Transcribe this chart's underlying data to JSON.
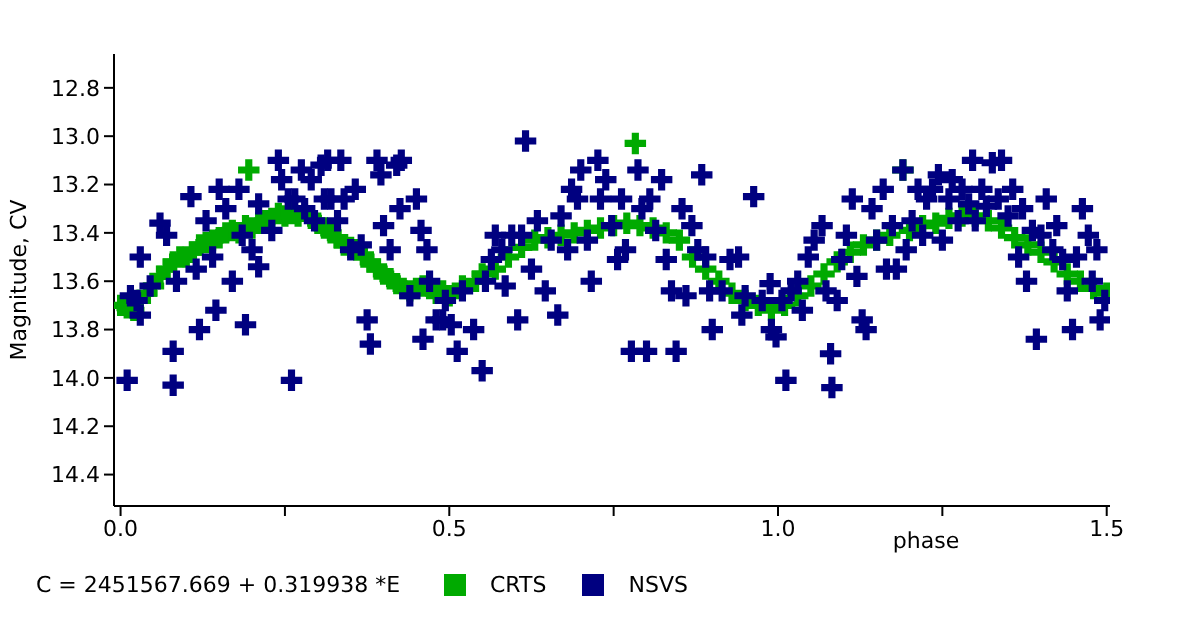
{
  "chart_data": {
    "type": "scatter",
    "xlabel": "phase",
    "ylabel": "Magnitude, CV",
    "annotations": [
      "C = 2451567.669 + 0.319938 *E"
    ],
    "xlim": [
      -0.01,
      1.505
    ],
    "ylim": [
      14.53,
      12.66
    ],
    "xticks": [
      {
        "value": 0,
        "label": "0.0"
      },
      {
        "value": 0.25,
        "label": null
      },
      {
        "value": 0.5,
        "label": "0.5"
      },
      {
        "value": 0.75,
        "label": null
      },
      {
        "value": 1,
        "label": "1.0"
      },
      {
        "value": 1.25,
        "label": null
      },
      {
        "value": 1.5,
        "label": "1.5"
      }
    ],
    "yticks": [
      12.8,
      {
        "value": 13.0,
        "label": "13.0"
      },
      13.2,
      13.4,
      13.6,
      13.8,
      {
        "value": 14.0,
        "label": "14.0"
      },
      14.2,
      14.4
    ],
    "grid": false,
    "legend": "bottom left",
    "marker": "cross",
    "series": [
      {
        "name": "CRTS",
        "color": "#00aa00",
        "x": [
          0.0,
          0.01,
          0.02,
          0.03,
          0.04,
          0.05,
          0.06,
          0.07,
          0.08,
          0.09,
          0.1,
          0.11,
          0.12,
          0.13,
          0.14,
          0.15,
          0.16,
          0.17,
          0.18,
          0.195,
          0.19,
          0.2,
          0.21,
          0.22,
          0.23,
          0.24,
          0.25,
          0.26,
          0.27,
          0.29,
          0.3,
          0.31,
          0.32,
          0.33,
          0.34,
          0.35,
          0.36,
          0.37,
          0.38,
          0.39,
          0.4,
          0.41,
          0.42,
          0.43,
          0.44,
          0.45,
          0.46,
          0.47,
          0.48,
          0.49,
          0.5,
          0.52,
          0.54,
          0.55,
          0.57,
          0.59,
          0.61,
          0.63,
          0.65,
          0.67,
          0.69,
          0.71,
          0.73,
          0.75,
          0.77,
          0.783,
          0.79,
          0.81,
          0.83,
          0.85,
          0.87,
          0.89,
          0.91,
          0.93,
          0.95,
          0.97,
          0.99,
          1.01,
          1.03,
          1.05,
          1.07,
          1.09,
          1.11,
          1.13,
          1.15,
          1.17,
          1.19,
          1.2,
          1.22,
          1.24,
          1.26,
          1.28,
          1.3,
          1.32,
          1.34,
          1.36,
          1.38,
          1.4,
          1.42,
          1.44,
          1.46,
          1.48,
          1.5
        ],
        "values": [
          13.7,
          13.71,
          13.72,
          13.68,
          13.65,
          13.62,
          13.58,
          13.55,
          13.52,
          13.5,
          13.5,
          13.48,
          13.45,
          13.44,
          13.43,
          13.42,
          13.4,
          13.39,
          13.4,
          13.14,
          13.37,
          13.38,
          13.36,
          13.35,
          13.34,
          13.32,
          13.33,
          13.32,
          13.33,
          13.34,
          13.36,
          13.38,
          13.4,
          13.42,
          13.45,
          13.46,
          13.47,
          13.5,
          13.52,
          13.55,
          13.57,
          13.59,
          13.61,
          13.63,
          13.64,
          13.63,
          13.62,
          13.63,
          13.65,
          13.64,
          13.66,
          13.62,
          13.6,
          13.57,
          13.55,
          13.5,
          13.46,
          13.43,
          13.42,
          13.41,
          13.4,
          13.39,
          13.38,
          13.37,
          13.36,
          13.03,
          13.37,
          13.38,
          13.4,
          13.43,
          13.5,
          13.55,
          13.6,
          13.65,
          13.68,
          13.7,
          13.72,
          13.7,
          13.66,
          13.62,
          13.57,
          13.52,
          13.48,
          13.45,
          13.43,
          13.41,
          13.14,
          13.39,
          13.37,
          13.36,
          13.34,
          13.33,
          13.33,
          13.35,
          13.38,
          13.42,
          13.45,
          13.48,
          13.52,
          13.57,
          13.6,
          13.63,
          13.65
        ]
      },
      {
        "name": "NSVS",
        "color": "#000080",
        "x": [
          0.01,
          0.015,
          0.025,
          0.03,
          0.03,
          0.045,
          0.06,
          0.07,
          0.08,
          0.08,
          0.085,
          0.107,
          0.115,
          0.12,
          0.13,
          0.14,
          0.145,
          0.15,
          0.16,
          0.17,
          0.18,
          0.185,
          0.19,
          0.2,
          0.21,
          0.21,
          0.23,
          0.24,
          0.245,
          0.255,
          0.26,
          0.265,
          0.275,
          0.28,
          0.29,
          0.295,
          0.305,
          0.31,
          0.315,
          0.32,
          0.33,
          0.335,
          0.34,
          0.35,
          0.357,
          0.366,
          0.375,
          0.38,
          0.39,
          0.396,
          0.4,
          0.41,
          0.42,
          0.425,
          0.427,
          0.44,
          0.45,
          0.457,
          0.46,
          0.466,
          0.47,
          0.48,
          0.49,
          0.494,
          0.503,
          0.512,
          0.52,
          0.537,
          0.55,
          0.555,
          0.564,
          0.57,
          0.58,
          0.585,
          0.595,
          0.604,
          0.61,
          0.616,
          0.625,
          0.634,
          0.646,
          0.655,
          0.665,
          0.67,
          0.68,
          0.686,
          0.695,
          0.7,
          0.71,
          0.716,
          0.726,
          0.73,
          0.738,
          0.747,
          0.756,
          0.762,
          0.768,
          0.777,
          0.787,
          0.793,
          0.8,
          0.805,
          0.814,
          0.823,
          0.83,
          0.838,
          0.845,
          0.854,
          0.86,
          0.869,
          0.878,
          0.884,
          0.89,
          0.896,
          0.9,
          0.915,
          0.927,
          0.94,
          0.945,
          0.95,
          0.963,
          0.976,
          0.988,
          0.99,
          0.997,
          1.006,
          1.012,
          1.02,
          1.03,
          1.037,
          1.046,
          1.055,
          1.067,
          1.073,
          1.08,
          1.082,
          1.09,
          1.097,
          1.104,
          1.113,
          1.12,
          1.128,
          1.134,
          1.143,
          1.15,
          1.16,
          1.165,
          1.174,
          1.18,
          1.19,
          1.195,
          1.204,
          1.213,
          1.22,
          1.226,
          1.235,
          1.244,
          1.25,
          1.26,
          1.265,
          1.274,
          1.28,
          1.29,
          1.296,
          1.3,
          1.31,
          1.317,
          1.326,
          1.335,
          1.34,
          1.35,
          1.357,
          1.366,
          1.372,
          1.378,
          1.387,
          1.393,
          1.4,
          1.408,
          1.418,
          1.424,
          1.433,
          1.44,
          1.448,
          1.454,
          1.463,
          1.472,
          1.478,
          1.485,
          1.49,
          1.497
        ],
        "values": [
          14.01,
          13.66,
          13.68,
          13.5,
          13.74,
          13.62,
          13.36,
          13.41,
          14.03,
          13.89,
          13.6,
          13.25,
          13.55,
          13.8,
          13.35,
          13.5,
          13.72,
          13.22,
          13.3,
          13.6,
          13.22,
          13.41,
          13.78,
          13.47,
          13.28,
          13.54,
          13.39,
          13.1,
          13.18,
          13.26,
          14.01,
          13.26,
          13.14,
          13.3,
          13.18,
          13.35,
          13.12,
          13.26,
          13.1,
          13.26,
          13.35,
          13.1,
          13.26,
          13.47,
          13.22,
          13.45,
          13.76,
          13.86,
          13.1,
          13.16,
          13.37,
          13.47,
          13.12,
          13.3,
          13.1,
          13.66,
          13.26,
          13.39,
          13.84,
          13.47,
          13.6,
          13.76,
          13.76,
          13.68,
          13.78,
          13.89,
          13.64,
          13.8,
          13.97,
          13.6,
          13.51,
          13.41,
          13.47,
          13.62,
          13.41,
          13.76,
          13.41,
          13.02,
          13.55,
          13.35,
          13.64,
          13.43,
          13.74,
          13.33,
          13.47,
          13.22,
          13.26,
          13.14,
          13.43,
          13.6,
          13.1,
          13.26,
          13.18,
          13.37,
          13.51,
          13.26,
          13.47,
          13.89,
          13.14,
          13.3,
          13.89,
          13.26,
          13.39,
          13.18,
          13.51,
          13.64,
          13.89,
          13.3,
          13.66,
          13.37,
          13.47,
          13.16,
          13.5,
          13.64,
          13.8,
          13.64,
          13.51,
          13.5,
          13.74,
          13.66,
          13.25,
          13.68,
          13.61,
          13.8,
          13.83,
          13.68,
          14.01,
          13.64,
          13.6,
          13.72,
          13.5,
          13.43,
          13.37,
          13.64,
          13.9,
          14.04,
          13.68,
          13.51,
          13.41,
          13.26,
          13.58,
          13.76,
          13.8,
          13.3,
          13.43,
          13.22,
          13.55,
          13.37,
          13.55,
          13.14,
          13.47,
          13.35,
          13.22,
          13.41,
          13.26,
          13.22,
          13.16,
          13.43,
          13.26,
          13.18,
          13.35,
          13.22,
          13.28,
          13.1,
          13.35,
          13.22,
          13.29,
          13.11,
          13.26,
          13.1,
          13.33,
          13.22,
          13.5,
          13.3,
          13.6,
          13.39,
          13.84,
          13.41,
          13.26,
          13.47,
          13.37,
          13.51,
          13.64,
          13.8,
          13.5,
          13.3,
          13.41,
          13.6,
          13.47,
          13.76,
          13.68
        ]
      }
    ]
  }
}
